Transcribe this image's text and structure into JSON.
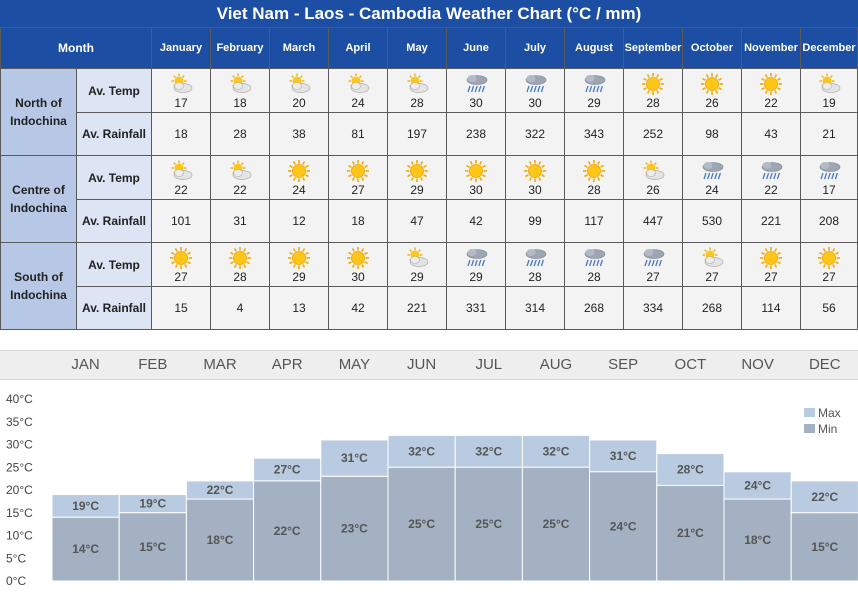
{
  "title": "Viet Nam - Laos - Cambodia Weather Chart (°C / mm)",
  "table": {
    "month_label": "Month",
    "months": [
      "January",
      "February",
      "March",
      "April",
      "May",
      "June",
      "July",
      "August",
      "September",
      "October",
      "November",
      "December"
    ],
    "row_temp_label": "Av. Temp",
    "row_rain_label": "Av. Rainfall",
    "regions": [
      {
        "name_line1": "North of",
        "name_line2": "Indochina",
        "temp": [
          "17",
          "18",
          "20",
          "24",
          "28",
          "30",
          "30",
          "29",
          "28",
          "26",
          "22",
          "19"
        ],
        "icons": [
          "partly-cloudy-icon",
          "partly-cloudy-icon",
          "partly-cloudy-icon",
          "partly-cloudy-icon",
          "partly-cloudy-icon",
          "rain-cloud-icon",
          "rain-cloud-icon",
          "rain-cloud-icon",
          "sun-icon",
          "sun-icon",
          "sun-icon",
          "partly-cloudy-icon"
        ],
        "rain": [
          "18",
          "28",
          "38",
          "81",
          "197",
          "238",
          "322",
          "343",
          "252",
          "98",
          "43",
          "21"
        ]
      },
      {
        "name_line1": "Centre of",
        "name_line2": "Indochina",
        "temp": [
          "22",
          "22",
          "24",
          "27",
          "29",
          "30",
          "30",
          "28",
          "26",
          "24",
          "22",
          "17"
        ],
        "icons": [
          "partly-cloudy-icon",
          "partly-cloudy-icon",
          "sun-icon",
          "sun-icon",
          "sun-icon",
          "sun-icon",
          "sun-icon",
          "sun-icon",
          "partly-cloudy-icon",
          "rain-cloud-icon",
          "rain-cloud-icon",
          "rain-cloud-icon"
        ],
        "rain": [
          "101",
          "31",
          "12",
          "18",
          "47",
          "42",
          "99",
          "117",
          "447",
          "530",
          "221",
          "208"
        ]
      },
      {
        "name_line1": "South of",
        "name_line2": "Indochina",
        "temp": [
          "27",
          "28",
          "29",
          "30",
          "29",
          "29",
          "28",
          "28",
          "27",
          "27",
          "27",
          "27"
        ],
        "icons": [
          "sun-icon",
          "sun-icon",
          "sun-icon",
          "sun-icon",
          "partly-cloudy-icon",
          "rain-cloud-icon",
          "rain-cloud-icon",
          "rain-cloud-icon",
          "rain-cloud-icon",
          "partly-cloudy-icon",
          "sun-icon",
          "sun-icon"
        ],
        "rain": [
          "15",
          "4",
          "13",
          "42",
          "221",
          "331",
          "314",
          "268",
          "334",
          "268",
          "114",
          "56"
        ]
      }
    ]
  },
  "chart_data": {
    "type": "bar",
    "categories": [
      "JAN",
      "FEB",
      "MAR",
      "APR",
      "MAY",
      "JUN",
      "JUL",
      "AUG",
      "SEP",
      "OCT",
      "NOV",
      "DEC"
    ],
    "series": [
      {
        "name": "Max",
        "values": [
          19,
          19,
          22,
          27,
          31,
          32,
          32,
          32,
          31,
          28,
          24,
          22
        ],
        "color": "#b8cbe0"
      },
      {
        "name": "Min",
        "values": [
          14,
          15,
          18,
          22,
          23,
          25,
          25,
          25,
          24,
          21,
          18,
          15
        ],
        "color": "#a3b1c2"
      }
    ],
    "yticks": [
      "0°C",
      "5°C",
      "10°C",
      "15°C",
      "20°C",
      "25°C",
      "30°C",
      "35°C",
      "40°C"
    ],
    "ylim": [
      0,
      40
    ],
    "unit": "°C",
    "legend": "top-right"
  }
}
